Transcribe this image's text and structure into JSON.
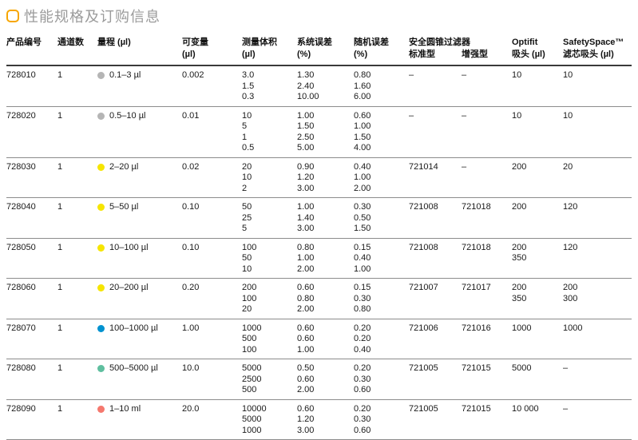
{
  "page": {
    "title": "性能规格及订购信息",
    "accent_color": "#F7A600",
    "title_color": "#9b9b9b"
  },
  "table": {
    "headers": {
      "product_no": "产品编号",
      "channels": "通道数",
      "range": "量程 (µl)",
      "increment": [
        "可变量",
        "(µl)"
      ],
      "test_volume": [
        "测量体积",
        "(µl)"
      ],
      "sys_error": [
        "系统误差",
        "(%)"
      ],
      "rand_error": [
        "随机误差",
        "(%)"
      ],
      "filter_group": "安全圆锥过滤器",
      "filter_std": "标准型",
      "filter_plus": "增强型",
      "optifit": [
        "Optifit",
        "吸头 (µl)"
      ],
      "safetyspace": [
        "SafetySpace™",
        "滤芯吸头 (µl)"
      ]
    },
    "dot_colors": {
      "gray": "#b5b5b5",
      "yellow": "#f6e500",
      "blue": "#0092d0",
      "teal": "#5fbf9f",
      "salmon": "#f5786e"
    },
    "rows": [
      {
        "product_no": "728010",
        "channels": "1",
        "dot_color": "#b5b5b5",
        "range": "0.1–3 µl",
        "increment": "0.002",
        "volumes": [
          "3.0",
          "1.5",
          "0.3"
        ],
        "sys_errors": [
          "1.30",
          "2.40",
          "10.00"
        ],
        "rand_errors": [
          "0.80",
          "1.60",
          "6.00"
        ],
        "filter_std": "–",
        "filter_plus": "–",
        "optifit": [
          "10"
        ],
        "safetyspace": [
          "10"
        ]
      },
      {
        "product_no": "728020",
        "channels": "1",
        "dot_color": "#b5b5b5",
        "range": "0.5–10 µl",
        "increment": "0.01",
        "volumes": [
          "10",
          "5",
          "1",
          "0.5"
        ],
        "sys_errors": [
          "1.00",
          "1.50",
          "2.50",
          "5.00"
        ],
        "rand_errors": [
          "0.60",
          "1.00",
          "1.50",
          "4.00"
        ],
        "filter_std": "–",
        "filter_plus": "–",
        "optifit": [
          "10"
        ],
        "safetyspace": [
          "10"
        ]
      },
      {
        "product_no": "728030",
        "channels": "1",
        "dot_color": "#f6e500",
        "range": "2–20 µl",
        "increment": "0.02",
        "volumes": [
          "20",
          "10",
          "2"
        ],
        "sys_errors": [
          "0.90",
          "1.20",
          "3.00"
        ],
        "rand_errors": [
          "0.40",
          "1.00",
          "2.00"
        ],
        "filter_std": "721014",
        "filter_plus": "–",
        "optifit": [
          "200"
        ],
        "safetyspace": [
          "20"
        ]
      },
      {
        "product_no": "728040",
        "channels": "1",
        "dot_color": "#f6e500",
        "range": "5–50 µl",
        "increment": "0.10",
        "volumes": [
          "50",
          "25",
          "5"
        ],
        "sys_errors": [
          "1.00",
          "1.40",
          "3.00"
        ],
        "rand_errors": [
          "0.30",
          "0.50",
          "1.50"
        ],
        "filter_std": "721008",
        "filter_plus": "721018",
        "optifit": [
          "200"
        ],
        "safetyspace": [
          "120"
        ]
      },
      {
        "product_no": "728050",
        "channels": "1",
        "dot_color": "#f6e500",
        "range": "10–100 µl",
        "increment": "0.10",
        "volumes": [
          "100",
          "50",
          "10"
        ],
        "sys_errors": [
          "0.80",
          "1.00",
          "2.00"
        ],
        "rand_errors": [
          "0.15",
          "0.40",
          "1.00"
        ],
        "filter_std": "721008",
        "filter_plus": "721018",
        "optifit": [
          "200",
          "350"
        ],
        "safetyspace": [
          "120"
        ]
      },
      {
        "product_no": "728060",
        "channels": "1",
        "dot_color": "#f6e500",
        "range": "20–200 µl",
        "increment": "0.20",
        "volumes": [
          "200",
          "100",
          "20"
        ],
        "sys_errors": [
          "0.60",
          "0.80",
          "2.00"
        ],
        "rand_errors": [
          "0.15",
          "0.30",
          "0.80"
        ],
        "filter_std": "721007",
        "filter_plus": "721017",
        "optifit": [
          "200",
          "350"
        ],
        "safetyspace": [
          "200",
          "300"
        ]
      },
      {
        "product_no": "728070",
        "channels": "1",
        "dot_color": "#0092d0",
        "range": "100–1000 µl",
        "increment": "1.00",
        "volumes": [
          "1000",
          "500",
          "100"
        ],
        "sys_errors": [
          "0.60",
          "0.60",
          "1.00"
        ],
        "rand_errors": [
          "0.20",
          "0.20",
          "0.40"
        ],
        "filter_std": "721006",
        "filter_plus": "721016",
        "optifit": [
          "1000"
        ],
        "safetyspace": [
          "1000"
        ]
      },
      {
        "product_no": "728080",
        "channels": "1",
        "dot_color": "#5fbf9f",
        "range": "500–5000 µl",
        "increment": "10.0",
        "volumes": [
          "5000",
          "2500",
          "500"
        ],
        "sys_errors": [
          "0.50",
          "0.60",
          "2.00"
        ],
        "rand_errors": [
          "0.20",
          "0.30",
          "0.60"
        ],
        "filter_std": "721005",
        "filter_plus": "721015",
        "optifit": [
          "5000"
        ],
        "safetyspace": [
          "–"
        ]
      },
      {
        "product_no": "728090",
        "channels": "1",
        "dot_color": "#f5786e",
        "range": "1–10 ml",
        "increment": "20.0",
        "volumes": [
          "10000",
          "5000",
          "1000"
        ],
        "sys_errors": [
          "0.60",
          "1.20",
          "3.00"
        ],
        "rand_errors": [
          "0.20",
          "0.30",
          "0.60"
        ],
        "filter_std": "721005",
        "filter_plus": "721015",
        "optifit": [
          "10 000"
        ],
        "safetyspace": [
          "–"
        ]
      }
    ]
  }
}
